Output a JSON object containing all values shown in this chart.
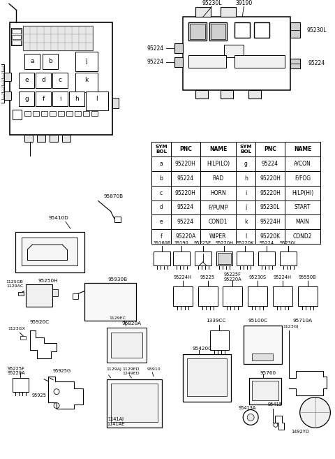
{
  "background_color": "#ffffff",
  "table_rows": [
    [
      "a",
      "95220H",
      "H/LP(LO)",
      "g",
      "95224",
      "A/CON"
    ],
    [
      "b",
      "95224",
      "RAD",
      "h",
      "95220H",
      "F/FOG"
    ],
    [
      "c",
      "95220H",
      "HORN",
      "i",
      "95220H",
      "H/LP(HI)"
    ],
    [
      "d",
      "95224",
      "F/PUMP",
      "j",
      "95230L",
      "START"
    ],
    [
      "e",
      "95224",
      "COND1",
      "k",
      "95224H",
      "MAIN"
    ],
    [
      "f",
      "95220A",
      "WIPER",
      "l",
      "95220K",
      "COND2"
    ]
  ],
  "relay_row1_labels": [
    "39160B",
    "39190",
    "95225E",
    "95220H",
    "95220K",
    "95224",
    "95230L"
  ],
  "relay_row2_labels": [
    "95224H",
    "95225",
    "95225F\n95220A",
    "95230S",
    "95224H",
    "95550B"
  ]
}
